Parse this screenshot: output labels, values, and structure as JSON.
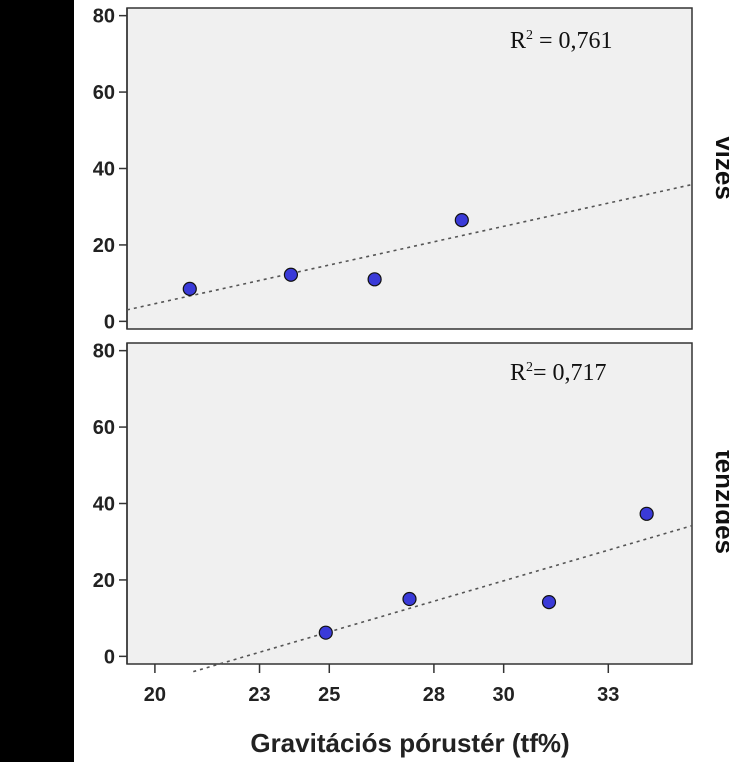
{
  "chart_data": {
    "type": "scatter",
    "xlabel": "Gravitációs pórustér (tf%)",
    "x_ticks": [
      20,
      23,
      25,
      28,
      30,
      33
    ],
    "y_ticks": [
      0,
      20,
      40,
      60,
      80
    ],
    "xlim": [
      19.2,
      35.4
    ],
    "ylim": [
      -2,
      82
    ],
    "marker_color": "#3a3ad8",
    "panels": [
      {
        "label": "vizes",
        "r2_base": "R",
        "r2_sup": "2",
        "r2_value": " = 0,761",
        "points": [
          {
            "x": 21.0,
            "y": 8.5
          },
          {
            "x": 23.9,
            "y": 12.2
          },
          {
            "x": 26.3,
            "y": 11.0
          },
          {
            "x": 28.8,
            "y": 26.5
          }
        ],
        "fit": {
          "x0": 19.2,
          "y0": 3.0,
          "x1": 35.4,
          "y1": 35.8
        }
      },
      {
        "label": "tenzides",
        "r2_base": "R",
        "r2_sup": "2",
        "r2_value": "= 0,717",
        "points": [
          {
            "x": 24.9,
            "y": 6.2
          },
          {
            "x": 27.3,
            "y": 15.0
          },
          {
            "x": 31.3,
            "y": 14.2
          },
          {
            "x": 34.1,
            "y": 37.3
          }
        ],
        "fit": {
          "x0": 21.1,
          "y0": -4.0,
          "x1": 35.4,
          "y1": 34.2
        }
      }
    ]
  }
}
